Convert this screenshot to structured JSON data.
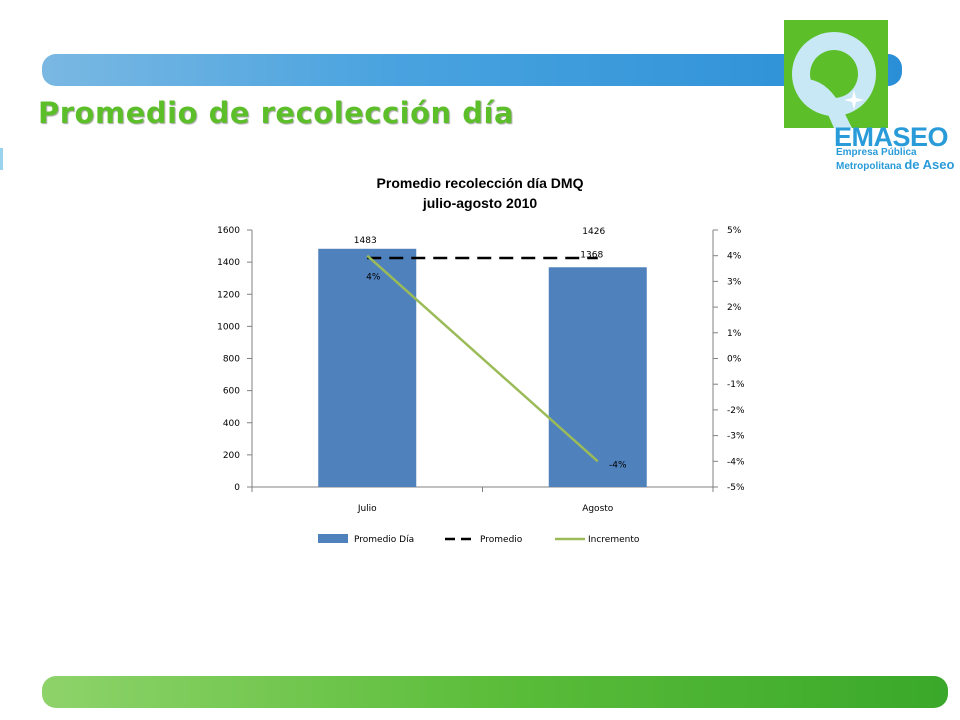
{
  "slide": {
    "title": "Promedio de recolección día",
    "colors": {
      "top_band": "#4aa3df",
      "bottom_band": "#5bbd3a",
      "title": "#5cbf2a"
    }
  },
  "logo": {
    "name": "EMASEO",
    "line1": "Empresa Pública",
    "line2": "Metropolitana",
    "line2_de": "de Aseo",
    "colors": {
      "green": "#5cbf2a",
      "blue": "#2a9bd9",
      "light_blue": "#bfe3f4"
    }
  },
  "chart_data": {
    "type": "bar",
    "title": "Promedio recolección día DMQ",
    "subtitle": "julio-agosto 2010",
    "categories": [
      "Julio",
      "Agosto"
    ],
    "primary_axis": {
      "min": 0,
      "max": 1600,
      "step": 200,
      "ticks": [
        "0",
        "200",
        "400",
        "600",
        "800",
        "1000",
        "1200",
        "1400",
        "1600"
      ]
    },
    "secondary_axis": {
      "min": -5,
      "max": 5,
      "step": 1,
      "ticks": [
        "-5%",
        "-4%",
        "-3%",
        "-2%",
        "-1%",
        "0%",
        "1%",
        "2%",
        "3%",
        "4%",
        "5%"
      ]
    },
    "series": [
      {
        "name": "Promedio Día",
        "type": "bar",
        "axis": "primary",
        "color": "#4f81bd",
        "values": [
          1483,
          1368
        ],
        "labels": [
          "1483",
          "1368"
        ]
      },
      {
        "name": "Promedio",
        "type": "line",
        "style": "dashed",
        "axis": "primary",
        "color": "#000000",
        "values": [
          1426,
          1426
        ],
        "labels": [
          "",
          "1426"
        ]
      },
      {
        "name": "Incremento",
        "type": "line",
        "axis": "secondary",
        "color": "#9bbb59",
        "values": [
          4,
          -4
        ],
        "labels": [
          "4%",
          "-4%"
        ]
      }
    ],
    "legend": {
      "position": "bottom"
    },
    "grid": false
  }
}
